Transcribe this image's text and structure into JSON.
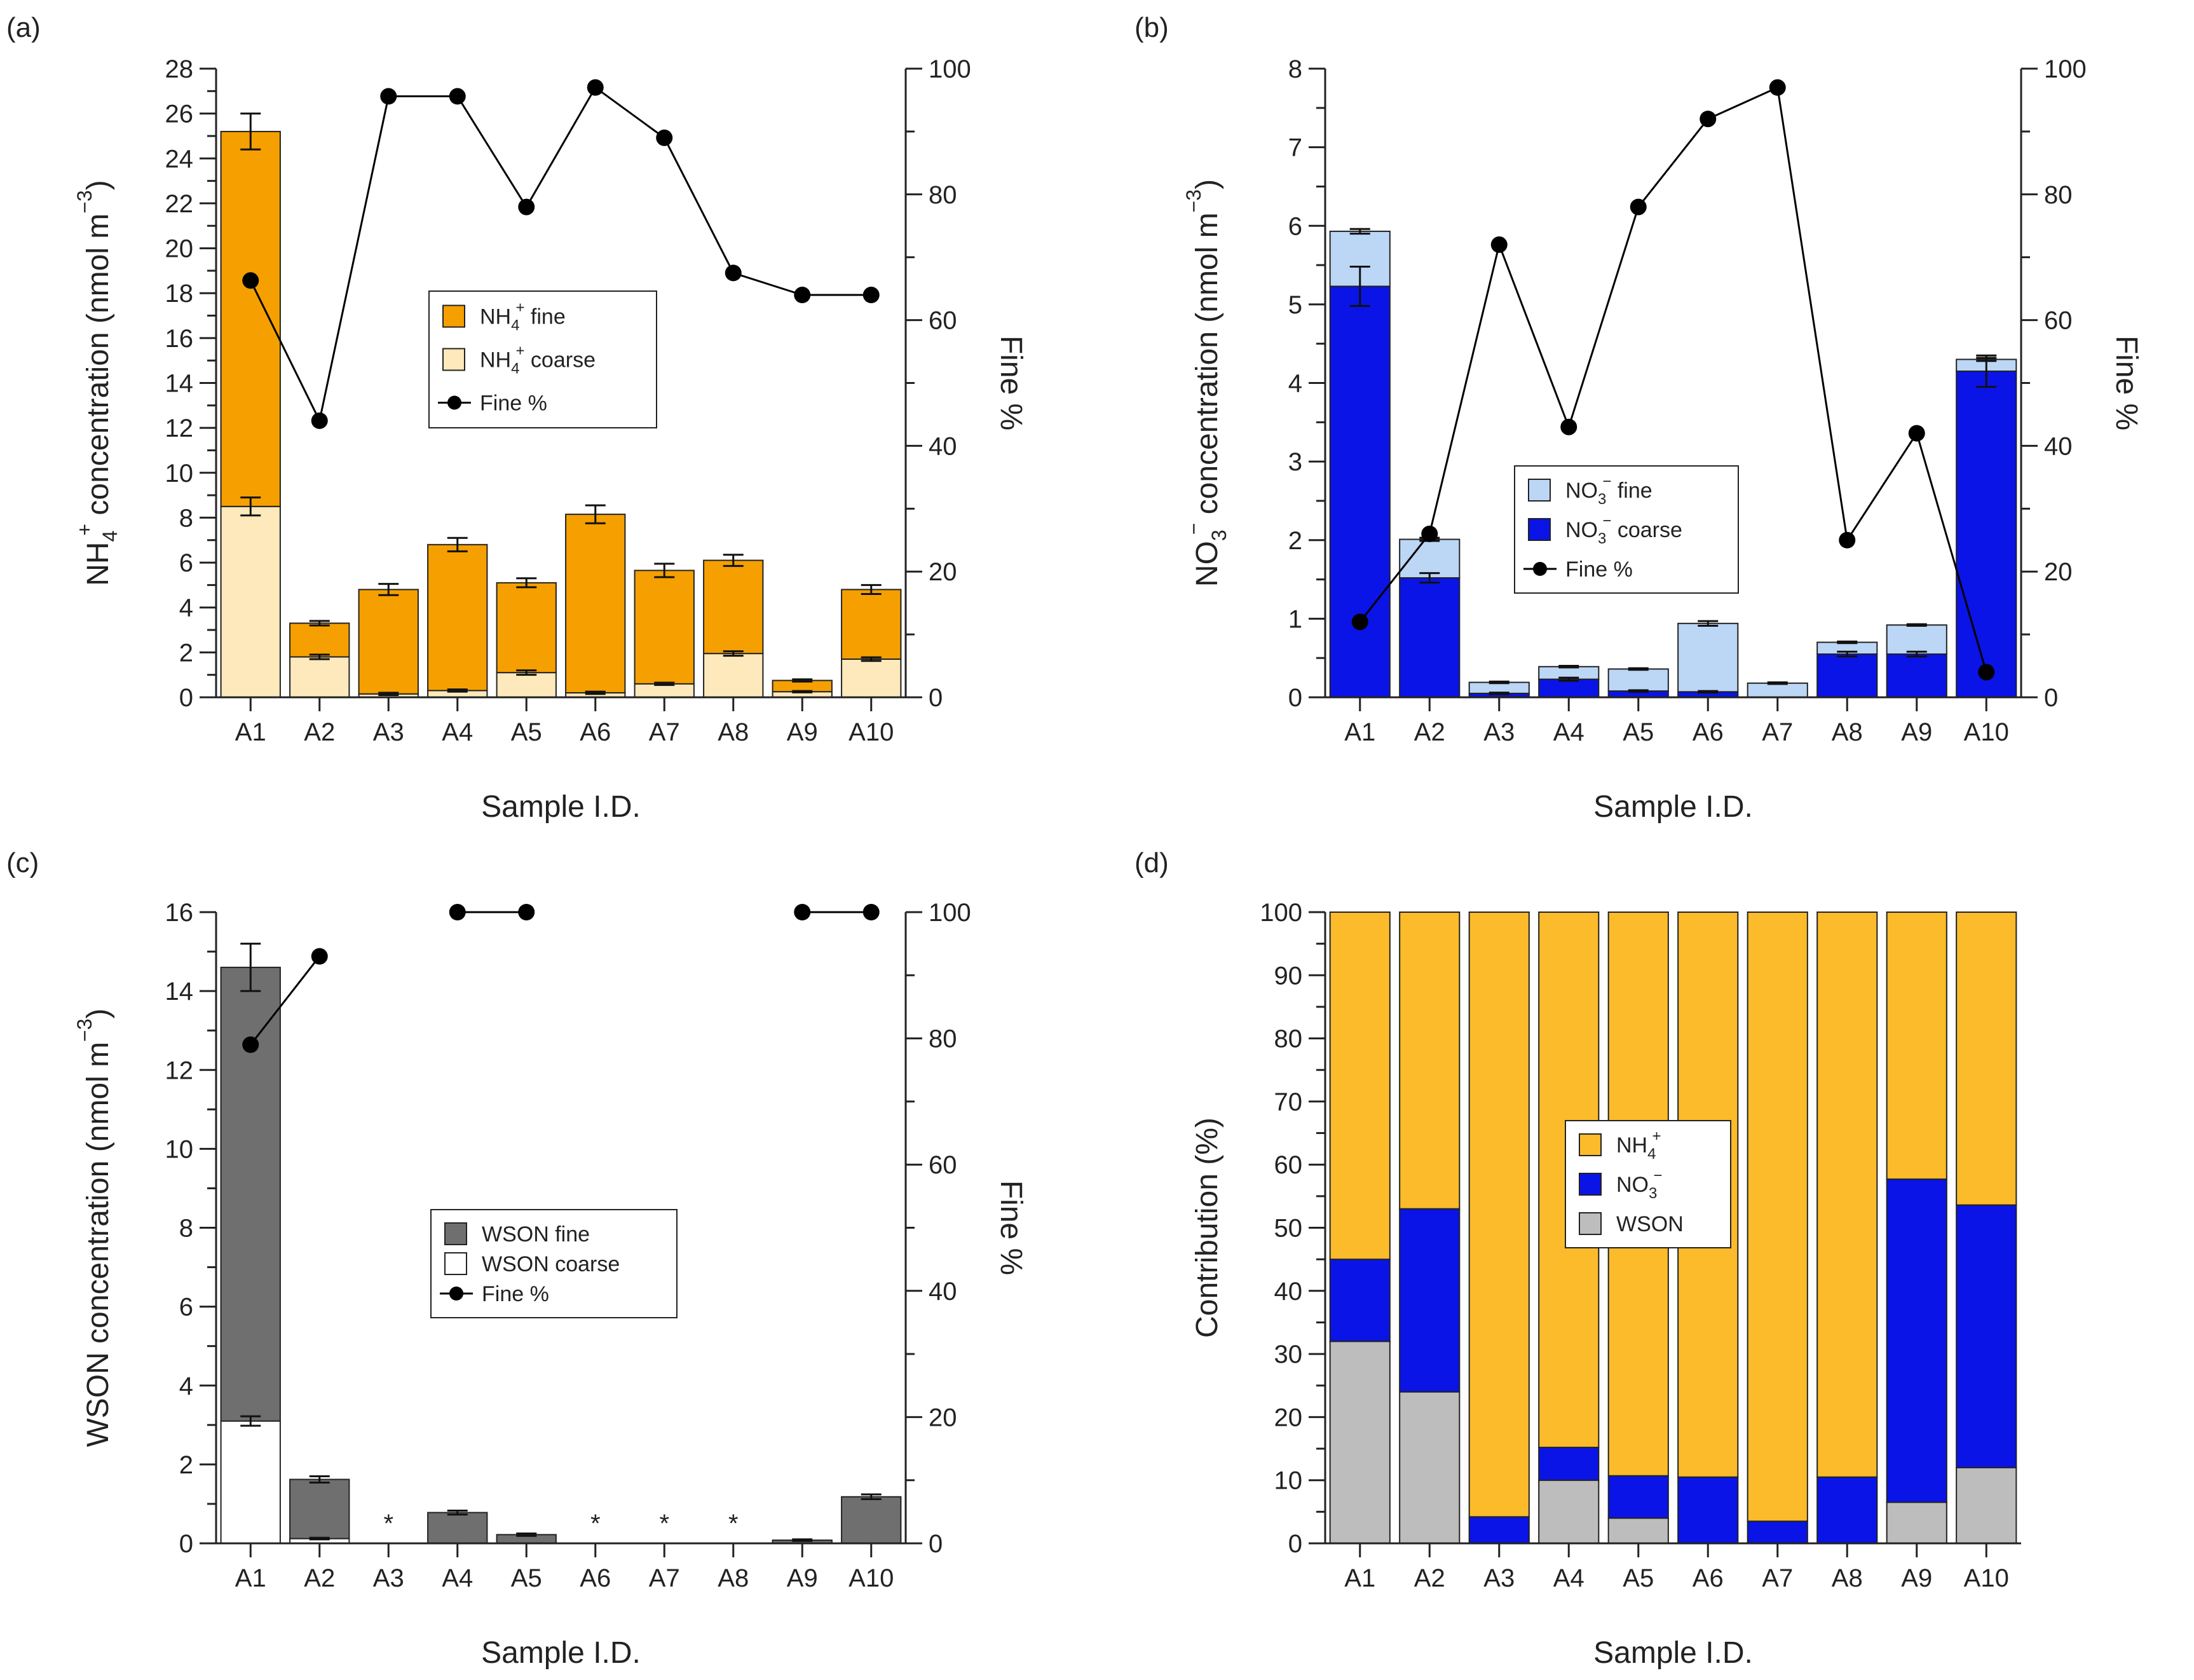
{
  "colors": {
    "nh4_fine": "#f5a000",
    "nh4_coarse": "#fde9bb",
    "no3_fine": "#bcd6f5",
    "no3_coarse": "#0a14e6",
    "wson_fine": "#6f6f6f",
    "wson_coarse": "#ffffff",
    "contrib_nh4": "#fbbb2a",
    "contrib_no3": "#0a14e6",
    "contrib_wson": "#bdbdbd",
    "line": "#000000"
  },
  "chart_data": [
    {
      "panel_label": "(a)",
      "type": "bar",
      "stacked": true,
      "categories": [
        "A1",
        "A2",
        "A3",
        "A4",
        "A5",
        "A6",
        "A7",
        "A8",
        "A9",
        "A10"
      ],
      "series": [
        {
          "name": "NH4+ coarse",
          "color_key": "nh4_coarse",
          "values": [
            8.5,
            1.8,
            0.15,
            0.3,
            1.1,
            0.2,
            0.6,
            1.95,
            0.25,
            1.7
          ],
          "errors": [
            0.4,
            0.1,
            0.05,
            0.05,
            0.1,
            0.05,
            0.05,
            0.1,
            0.03,
            0.08
          ]
        },
        {
          "name": "NH4+ fine",
          "color_key": "nh4_fine",
          "values": [
            16.7,
            1.5,
            4.65,
            6.5,
            4.0,
            7.95,
            5.05,
            4.15,
            0.5,
            3.1
          ],
          "errors": [
            0.8,
            0.1,
            0.25,
            0.3,
            0.2,
            0.4,
            0.3,
            0.25,
            0.05,
            0.2
          ]
        }
      ],
      "line": {
        "name": "Fine %",
        "values": [
          66.3,
          44,
          95.6,
          95.6,
          78,
          97,
          89,
          67.5,
          64,
          64
        ]
      },
      "ylabel": {
        "pre": "NH",
        "sub": "4",
        "sup": "+",
        "post": " concentration (nmol m",
        "sup2": "−3",
        "end": ")"
      },
      "ylabel2": "Fine %",
      "xlabel": "Sample I.D.",
      "ylim": [
        0,
        28
      ],
      "yticks": [
        0,
        2,
        4,
        6,
        8,
        10,
        12,
        14,
        16,
        18,
        20,
        22,
        24,
        26,
        28
      ],
      "y2lim": [
        0,
        100
      ],
      "y2ticks": [
        0,
        20,
        40,
        60,
        80,
        100
      ],
      "legend": [
        {
          "text": "NH",
          "sub": "4",
          "sup": "+",
          "rest": " fine",
          "type": "box",
          "color_key": "nh4_fine"
        },
        {
          "text": "NH",
          "sub": "4",
          "sup": "+",
          "rest": " coarse",
          "type": "box",
          "color_key": "nh4_coarse"
        },
        {
          "text": "Fine %",
          "sub": "",
          "sup": "",
          "rest": "",
          "type": "line"
        }
      ],
      "legend_position": "center-right",
      "annotations": []
    },
    {
      "panel_label": "(b)",
      "type": "bar",
      "stacked": true,
      "categories": [
        "A1",
        "A2",
        "A3",
        "A4",
        "A5",
        "A6",
        "A7",
        "A8",
        "A9",
        "A10"
      ],
      "series": [
        {
          "name": "NO3- coarse",
          "color_key": "no3_coarse",
          "values": [
            5.23,
            1.52,
            0.05,
            0.23,
            0.08,
            0.07,
            0.0,
            0.55,
            0.55,
            4.15
          ],
          "errors": [
            0.25,
            0.06,
            0.01,
            0.02,
            0.01,
            0.01,
            0.0,
            0.03,
            0.03,
            0.2
          ]
        },
        {
          "name": "NO3- fine",
          "color_key": "no3_fine",
          "values": [
            0.7,
            0.49,
            0.14,
            0.16,
            0.28,
            0.87,
            0.18,
            0.15,
            0.37,
            0.15
          ],
          "errors": [
            0.03,
            0.02,
            0.01,
            0.01,
            0.01,
            0.03,
            0.01,
            0.01,
            0.01,
            0.02
          ]
        }
      ],
      "line": {
        "name": "Fine %",
        "values": [
          12,
          26,
          72,
          43,
          78,
          92,
          97,
          25,
          42,
          4
        ]
      },
      "ylabel": {
        "pre": "NO",
        "sub": "3",
        "sup": "−",
        "post": " concentration (nmol m",
        "sup2": "−3",
        "end": ")"
      },
      "ylabel2": "Fine %",
      "xlabel": "Sample I.D.",
      "ylim": [
        0,
        8
      ],
      "yticks": [
        0,
        1,
        2,
        3,
        4,
        5,
        6,
        7,
        8
      ],
      "y2lim": [
        0,
        100
      ],
      "y2ticks": [
        0,
        20,
        40,
        60,
        80,
        100
      ],
      "legend": [
        {
          "text": "NO",
          "sub": "3",
          "sup": "−",
          "rest": " fine",
          "type": "box",
          "color_key": "no3_fine"
        },
        {
          "text": "NO",
          "sub": "3",
          "sup": "−",
          "rest": " coarse",
          "type": "box",
          "color_key": "no3_coarse"
        },
        {
          "text": "Fine %",
          "sub": "",
          "sup": "",
          "rest": "",
          "type": "line"
        }
      ],
      "legend_position": "center",
      "annotations": []
    },
    {
      "panel_label": "(c)",
      "type": "bar",
      "stacked": true,
      "categories": [
        "A1",
        "A2",
        "A3",
        "A4",
        "A5",
        "A6",
        "A7",
        "A8",
        "A9",
        "A10"
      ],
      "series": [
        {
          "name": "WSON coarse",
          "color_key": "wson_coarse",
          "values": [
            3.1,
            0.12,
            0,
            0,
            0,
            0,
            0,
            0,
            0,
            0
          ],
          "errors": [
            0.12,
            0.02,
            0,
            0,
            0,
            0,
            0,
            0,
            0,
            0
          ]
        },
        {
          "name": "WSON fine",
          "color_key": "wson_fine",
          "values": [
            11.5,
            1.5,
            0,
            0.78,
            0.22,
            0,
            0,
            0,
            0.08,
            1.18
          ],
          "errors": [
            0.6,
            0.08,
            0,
            0.05,
            0.03,
            0,
            0,
            0,
            0.02,
            0.06
          ]
        }
      ],
      "line": {
        "name": "Fine %",
        "values": [
          79,
          93,
          null,
          100,
          100,
          null,
          null,
          null,
          100,
          100
        ]
      },
      "ylabel": {
        "pre": "WSON concentration (nmol m",
        "sub": "",
        "sup": "",
        "post": "",
        "sup2": "−3",
        "end": ")"
      },
      "ylabel2": "Fine %",
      "xlabel": "Sample I.D.",
      "ylim": [
        0,
        16
      ],
      "yticks": [
        0,
        2,
        4,
        6,
        8,
        10,
        12,
        14,
        16
      ],
      "y2lim": [
        0,
        100
      ],
      "y2ticks": [
        0,
        20,
        40,
        60,
        80,
        100
      ],
      "legend": [
        {
          "text": "WSON fine",
          "sub": "",
          "sup": "",
          "rest": "",
          "type": "box",
          "color_key": "wson_fine"
        },
        {
          "text": "WSON coarse",
          "sub": "",
          "sup": "",
          "rest": "",
          "type": "box",
          "color_key": "wson_coarse"
        },
        {
          "text": "Fine %",
          "sub": "",
          "sup": "",
          "rest": "",
          "type": "line"
        }
      ],
      "legend_position": "center-right",
      "annotations": [
        {
          "category": "A3",
          "text": "*"
        },
        {
          "category": "A6",
          "text": "*"
        },
        {
          "category": "A7",
          "text": "*"
        },
        {
          "category": "A8",
          "text": "*"
        }
      ]
    },
    {
      "panel_label": "(d)",
      "type": "bar",
      "stacked": true,
      "categories": [
        "A1",
        "A2",
        "A3",
        "A4",
        "A5",
        "A6",
        "A7",
        "A8",
        "A9",
        "A10"
      ],
      "series": [
        {
          "name": "WSON",
          "color_key": "contrib_wson",
          "values": [
            32,
            24,
            0,
            10,
            4,
            0,
            0,
            0,
            6.5,
            12
          ],
          "errors": []
        },
        {
          "name": "NO3-",
          "color_key": "contrib_no3",
          "values": [
            13,
            29,
            4.2,
            5.2,
            6.7,
            10.5,
            3.5,
            10.5,
            51.2,
            41.6
          ],
          "errors": []
        },
        {
          "name": "NH4+",
          "color_key": "contrib_nh4",
          "values": [
            55,
            47,
            95.8,
            84.8,
            89.3,
            89.5,
            96.5,
            89.5,
            42.3,
            46.4
          ],
          "errors": []
        }
      ],
      "line": null,
      "ylabel": {
        "pre": "Contribution (%)",
        "sub": "",
        "sup": "",
        "post": "",
        "sup2": "",
        "end": ""
      },
      "ylabel2": "",
      "xlabel": "Sample I.D.",
      "ylim": [
        0,
        100
      ],
      "yticks": [
        0,
        10,
        20,
        30,
        40,
        50,
        60,
        70,
        80,
        90,
        100
      ],
      "y2lim": null,
      "y2ticks": [],
      "legend": [
        {
          "text": "NH",
          "sub": "4",
          "sup": "+",
          "rest": "",
          "type": "box",
          "color_key": "contrib_nh4"
        },
        {
          "text": "NO",
          "sub": "3",
          "sup": "−",
          "rest": "",
          "type": "box",
          "color_key": "contrib_no3"
        },
        {
          "text": "WSON",
          "sub": "",
          "sup": "",
          "rest": "",
          "type": "box",
          "color_key": "contrib_wson"
        }
      ],
      "legend_position": "center",
      "annotations": []
    }
  ]
}
